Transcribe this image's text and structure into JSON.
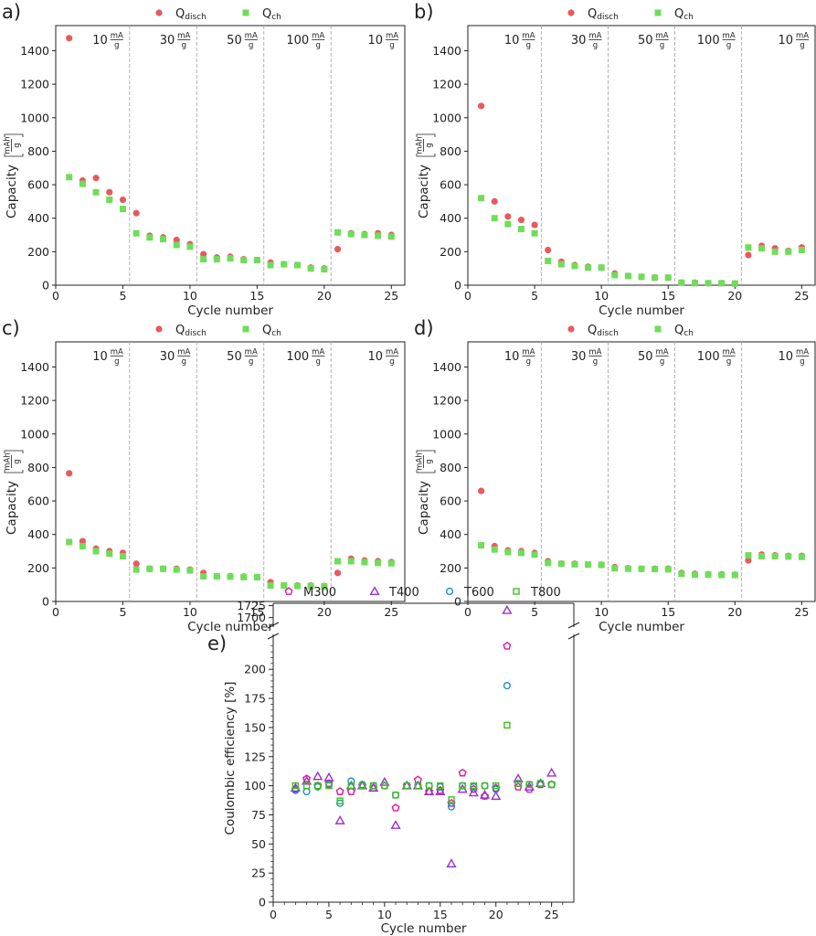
{
  "chart_data": [
    {
      "type": "scatter",
      "panel_label": "a)",
      "xlabel": "Cycle number",
      "ylabel": "Capacity",
      "yunit": {
        "num": "mAh",
        "den": "g"
      },
      "xlim": [
        0,
        26
      ],
      "ylim": [
        0,
        1550
      ],
      "xticks": [
        0,
        5,
        10,
        15,
        20,
        25
      ],
      "yticks": [
        0,
        200,
        400,
        600,
        800,
        1000,
        1200,
        1400
      ],
      "rate_boundaries": [
        5.5,
        10.5,
        15.5,
        20.5
      ],
      "rate_labels": [
        {
          "value": "10",
          "unit_num": "mA",
          "unit_den": "g"
        },
        {
          "value": "30",
          "unit_num": "mA",
          "unit_den": "g"
        },
        {
          "value": "50",
          "unit_num": "mA",
          "unit_den": "g"
        },
        {
          "value": "100",
          "unit_num": "mA",
          "unit_den": "g"
        },
        {
          "value": "10",
          "unit_num": "mA",
          "unit_den": "g"
        }
      ],
      "legend": [
        {
          "label": "Q",
          "sub": "disch",
          "marker": "circle",
          "color": "#e8595e"
        },
        {
          "label": "Q",
          "sub": "ch",
          "marker": "square",
          "color": "#6fdd5a"
        }
      ],
      "series": [
        {
          "name": "Qdisch",
          "x": [
            1,
            2,
            3,
            4,
            5,
            6,
            7,
            8,
            9,
            10,
            11,
            12,
            13,
            14,
            15,
            16,
            17,
            18,
            19,
            20,
            21,
            22,
            23,
            24,
            25
          ],
          "values": [
            1475,
            625,
            640,
            555,
            510,
            430,
            295,
            285,
            270,
            245,
            185,
            165,
            170,
            155,
            150,
            135,
            125,
            120,
            105,
            100,
            215,
            310,
            305,
            310,
            300
          ]
        },
        {
          "name": "Qch",
          "x": [
            1,
            2,
            3,
            4,
            5,
            6,
            7,
            8,
            9,
            10,
            11,
            12,
            13,
            14,
            15,
            16,
            17,
            18,
            19,
            20,
            21,
            22,
            23,
            24,
            25
          ],
          "values": [
            645,
            605,
            555,
            510,
            455,
            310,
            285,
            275,
            240,
            230,
            155,
            155,
            160,
            150,
            150,
            120,
            125,
            120,
            100,
            95,
            315,
            305,
            300,
            295,
            290
          ]
        }
      ]
    },
    {
      "type": "scatter",
      "panel_label": "b)",
      "xlabel": "Cycle number",
      "ylabel": "Capacity",
      "yunit": {
        "num": "mAh",
        "den": "g"
      },
      "xlim": [
        0,
        26
      ],
      "ylim": [
        0,
        1550
      ],
      "xticks": [
        0,
        5,
        10,
        15,
        20,
        25
      ],
      "yticks": [
        0,
        200,
        400,
        600,
        800,
        1000,
        1200,
        1400
      ],
      "rate_boundaries": [
        5.5,
        10.5,
        15.5,
        20.5
      ],
      "rate_labels": [
        {
          "value": "10",
          "unit_num": "mA",
          "unit_den": "g"
        },
        {
          "value": "30",
          "unit_num": "mA",
          "unit_den": "g"
        },
        {
          "value": "50",
          "unit_num": "mA",
          "unit_den": "g"
        },
        {
          "value": "100",
          "unit_num": "mA",
          "unit_den": "g"
        },
        {
          "value": "10",
          "unit_num": "mA",
          "unit_den": "g"
        }
      ],
      "legend": [
        {
          "label": "Q",
          "sub": "disch",
          "marker": "circle",
          "color": "#e8595e"
        },
        {
          "label": "Q",
          "sub": "ch",
          "marker": "square",
          "color": "#6fdd5a"
        }
      ],
      "series": [
        {
          "name": "Qdisch",
          "x": [
            1,
            2,
            3,
            4,
            5,
            6,
            7,
            8,
            9,
            10,
            11,
            12,
            13,
            14,
            15,
            16,
            17,
            18,
            19,
            20,
            21,
            22,
            23,
            24,
            25
          ],
          "values": [
            1070,
            500,
            410,
            390,
            360,
            210,
            140,
            120,
            110,
            105,
            70,
            55,
            50,
            45,
            45,
            15,
            15,
            12,
            12,
            10,
            180,
            235,
            220,
            205,
            225
          ]
        },
        {
          "name": "Qch",
          "x": [
            1,
            2,
            3,
            4,
            5,
            6,
            7,
            8,
            9,
            10,
            11,
            12,
            13,
            14,
            15,
            16,
            17,
            18,
            19,
            20,
            21,
            22,
            23,
            24,
            25
          ],
          "values": [
            520,
            400,
            365,
            335,
            310,
            145,
            125,
            115,
            105,
            105,
            60,
            55,
            50,
            45,
            45,
            15,
            12,
            12,
            12,
            10,
            225,
            220,
            200,
            200,
            210
          ]
        }
      ]
    },
    {
      "type": "scatter",
      "panel_label": "c)",
      "xlabel": "Cycle number",
      "ylabel": "Capacity",
      "yunit": {
        "num": "mAh",
        "den": "g"
      },
      "xlim": [
        0,
        26
      ],
      "ylim": [
        0,
        1550
      ],
      "xticks": [
        0,
        5,
        10,
        15,
        20,
        25
      ],
      "yticks": [
        0,
        200,
        400,
        600,
        800,
        1000,
        1200,
        1400
      ],
      "rate_boundaries": [
        5.5,
        10.5,
        15.5,
        20.5
      ],
      "rate_labels": [
        {
          "value": "10",
          "unit_num": "mA",
          "unit_den": "g"
        },
        {
          "value": "30",
          "unit_num": "mA",
          "unit_den": "g"
        },
        {
          "value": "50",
          "unit_num": "mA",
          "unit_den": "g"
        },
        {
          "value": "100",
          "unit_num": "mA",
          "unit_den": "g"
        },
        {
          "value": "10",
          "unit_num": "mA",
          "unit_den": "g"
        }
      ],
      "legend": [
        {
          "label": "Q",
          "sub": "disch",
          "marker": "circle",
          "color": "#e8595e"
        },
        {
          "label": "Q",
          "sub": "ch",
          "marker": "square",
          "color": "#6fdd5a"
        }
      ],
      "series": [
        {
          "name": "Qdisch",
          "x": [
            1,
            2,
            3,
            4,
            5,
            6,
            7,
            8,
            9,
            10,
            11,
            12,
            13,
            14,
            15,
            16,
            17,
            18,
            19,
            20,
            21,
            22,
            23,
            24,
            25
          ],
          "values": [
            765,
            360,
            315,
            300,
            290,
            225,
            195,
            195,
            195,
            190,
            170,
            150,
            150,
            148,
            145,
            115,
            95,
            95,
            95,
            92,
            170,
            255,
            245,
            240,
            235
          ]
        },
        {
          "name": "Qch",
          "x": [
            1,
            2,
            3,
            4,
            5,
            6,
            7,
            8,
            9,
            10,
            11,
            12,
            13,
            14,
            15,
            16,
            17,
            18,
            19,
            20,
            21,
            22,
            23,
            24,
            25
          ],
          "values": [
            355,
            330,
            300,
            285,
            270,
            190,
            195,
            195,
            190,
            185,
            150,
            150,
            148,
            145,
            145,
            95,
            95,
            92,
            92,
            90,
            240,
            240,
            235,
            230,
            228
          ]
        }
      ]
    },
    {
      "type": "scatter",
      "panel_label": "d)",
      "xlabel": "Cycle number",
      "ylabel": "Capacity",
      "yunit": {
        "num": "mAh",
        "den": "g"
      },
      "xlim": [
        0,
        26
      ],
      "ylim": [
        0,
        1550
      ],
      "xticks": [
        0,
        5,
        10,
        15,
        20,
        25
      ],
      "yticks": [
        0,
        200,
        400,
        600,
        800,
        1000,
        1200,
        1400
      ],
      "rate_boundaries": [
        5.5,
        10.5,
        15.5,
        20.5
      ],
      "rate_labels": [
        {
          "value": "10",
          "unit_num": "mA",
          "unit_den": "g"
        },
        {
          "value": "30",
          "unit_num": "mA",
          "unit_den": "g"
        },
        {
          "value": "50",
          "unit_num": "mA",
          "unit_den": "g"
        },
        {
          "value": "100",
          "unit_num": "mA",
          "unit_den": "g"
        },
        {
          "value": "10",
          "unit_num": "mA",
          "unit_den": "g"
        }
      ],
      "legend": [
        {
          "label": "Q",
          "sub": "disch",
          "marker": "circle",
          "color": "#e8595e"
        },
        {
          "label": "Q",
          "sub": "ch",
          "marker": "square",
          "color": "#6fdd5a"
        }
      ],
      "series": [
        {
          "name": "Qdisch",
          "x": [
            1,
            2,
            3,
            4,
            5,
            6,
            7,
            8,
            9,
            10,
            11,
            12,
            13,
            14,
            15,
            16,
            17,
            18,
            19,
            20,
            21,
            22,
            23,
            24,
            25
          ],
          "values": [
            660,
            330,
            305,
            300,
            290,
            240,
            225,
            225,
            220,
            220,
            205,
            198,
            195,
            195,
            195,
            170,
            165,
            162,
            162,
            160,
            245,
            280,
            275,
            272,
            272
          ]
        },
        {
          "name": "Qch",
          "x": [
            1,
            2,
            3,
            4,
            5,
            6,
            7,
            8,
            9,
            10,
            11,
            12,
            13,
            14,
            15,
            16,
            17,
            18,
            19,
            20,
            21,
            22,
            23,
            24,
            25
          ],
          "values": [
            335,
            310,
            295,
            290,
            280,
            230,
            225,
            222,
            220,
            218,
            198,
            195,
            195,
            193,
            192,
            165,
            160,
            160,
            158,
            158,
            275,
            270,
            270,
            268,
            266
          ]
        }
      ]
    },
    {
      "type": "scatter",
      "panel_label": "e)",
      "xlabel": "Cycle number",
      "ylabel": "Coulombic efficiency [%]",
      "xlim": [
        0,
        27
      ],
      "xticks": [
        0,
        5,
        10,
        15,
        20,
        25
      ],
      "ylim_lower": [
        0,
        230
      ],
      "yticks_lower": [
        0,
        25,
        50,
        75,
        100,
        125,
        150,
        175,
        200
      ],
      "ylim_upper": [
        1680,
        1730
      ],
      "yticks_upper": [
        1700,
        1725
      ],
      "legend": [
        {
          "label": "M300",
          "marker": "pentagon",
          "color": "#e0179a"
        },
        {
          "label": "T400",
          "marker": "triangle",
          "color": "#9b30c9"
        },
        {
          "label": "T600",
          "marker": "circle",
          "color": "#1a8fd0"
        },
        {
          "label": "T800",
          "marker": "square",
          "color": "#3fbf1f"
        }
      ],
      "series": [
        {
          "name": "M300",
          "x": [
            2,
            3,
            4,
            5,
            6,
            7,
            8,
            9,
            10,
            11,
            12,
            13,
            14,
            15,
            16,
            17,
            18,
            19,
            20,
            21,
            22,
            23,
            24,
            25
          ],
          "values": [
            97,
            106,
            100,
            102,
            95,
            95,
            100,
            98,
            100,
            81,
            100,
            105,
            95,
            96,
            85,
            111,
            97,
            91,
            98,
            220,
            99,
            97,
            101,
            101
          ]
        },
        {
          "name": "T400",
          "x": [
            2,
            3,
            4,
            5,
            6,
            7,
            8,
            9,
            10,
            11,
            12,
            13,
            14,
            15,
            16,
            17,
            18,
            19,
            20,
            21,
            22,
            23,
            24,
            25
          ],
          "values": [
            98,
            104,
            108,
            107,
            70,
            100,
            100,
            98,
            103,
            66,
            100,
            100,
            95,
            95,
            33,
            97,
            94,
            92,
            91,
            1715,
            106,
            99,
            102,
            111
          ]
        },
        {
          "name": "T600",
          "x": [
            2,
            3,
            4,
            5,
            6,
            7,
            8,
            9,
            10,
            11,
            12,
            13,
            14,
            15,
            16,
            17,
            18,
            19,
            20,
            21,
            22,
            23,
            24,
            25
          ],
          "values": [
            96,
            95,
            99,
            101,
            85,
            104,
            101,
            100,
            100,
            92,
            100,
            100,
            100,
            99,
            82,
            100,
            99,
            100,
            97,
            186,
            102,
            101,
            102,
            101
          ]
        },
        {
          "name": "T800",
          "x": [
            2,
            3,
            4,
            5,
            6,
            7,
            8,
            9,
            10,
            11,
            12,
            13,
            14,
            15,
            16,
            17,
            18,
            19,
            20,
            21,
            22,
            23,
            24,
            25
          ],
          "values": [
            100,
            100,
            100,
            100,
            87,
            100,
            100,
            100,
            100,
            92,
            100,
            100,
            100,
            100,
            88,
            100,
            100,
            100,
            100,
            152,
            102,
            101,
            102,
            101
          ]
        }
      ]
    }
  ]
}
